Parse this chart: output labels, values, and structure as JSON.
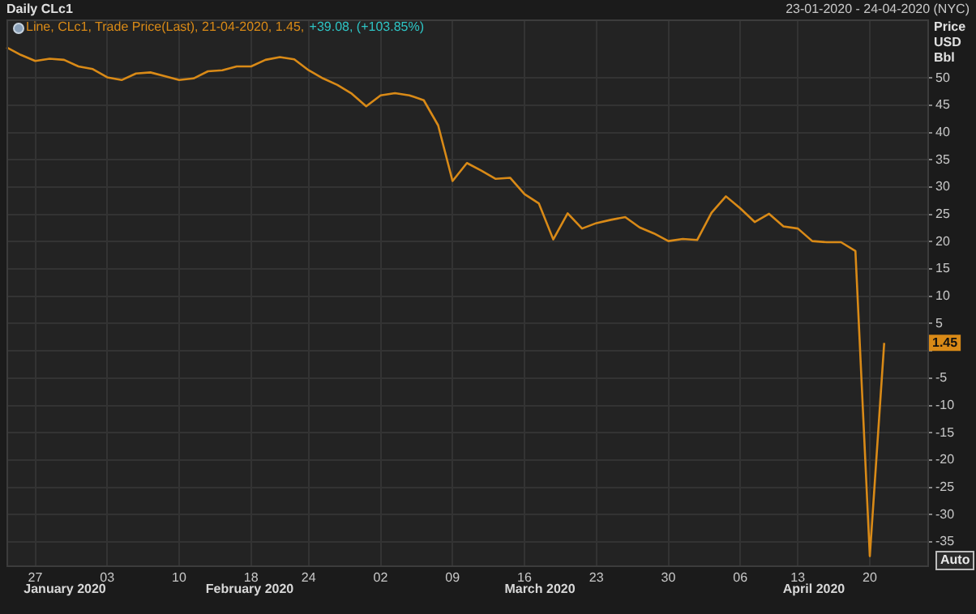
{
  "chart_data": {
    "type": "line",
    "title": "Daily CLc1",
    "subtitle": "23-01-2020 - 24-04-2020 (NYC)",
    "ylabel": "Price\nUSD\nBbl",
    "categories": [
      null,
      null,
      "27",
      null,
      null,
      null,
      null,
      "03",
      null,
      null,
      null,
      null,
      "10",
      null,
      null,
      null,
      null,
      "18",
      null,
      null,
      null,
      "24",
      null,
      null,
      null,
      null,
      "02",
      null,
      null,
      null,
      null,
      "09",
      null,
      null,
      null,
      null,
      "16",
      null,
      null,
      null,
      null,
      "23",
      null,
      null,
      null,
      null,
      "30",
      null,
      null,
      null,
      null,
      "06",
      null,
      null,
      null,
      "13",
      null,
      null,
      null,
      null,
      "20",
      null,
      null,
      null,
      null
    ],
    "series": [
      {
        "name": "Line, CLc1, Trade Price(Last), 21-04-2020, 1.45,",
        "color": "#d98a17",
        "values": [
          55.6,
          54.2,
          53.1,
          53.5,
          53.3,
          52.1,
          51.6,
          50.1,
          49.6,
          50.8,
          51.0,
          50.3,
          49.6,
          49.9,
          51.2,
          51.4,
          52.1,
          52.1,
          53.3,
          53.8,
          53.4,
          51.4,
          49.9,
          48.7,
          47.1,
          44.8,
          46.8,
          47.2,
          46.8,
          45.9,
          41.3,
          31.1,
          34.4,
          33.0,
          31.5,
          31.7,
          28.7,
          27.0,
          20.4,
          25.2,
          22.4,
          23.4,
          24.0,
          24.5,
          22.6,
          21.5,
          20.1,
          20.5,
          20.3,
          25.3,
          28.3,
          26.1,
          23.6,
          25.1,
          22.8,
          22.4,
          20.1,
          19.9,
          19.9,
          18.3,
          -37.6,
          1.45,
          null,
          null,
          null
        ]
      }
    ],
    "ylim": [
      -39.3,
      60.7
    ],
    "yticks": [
      -35,
      -30,
      -25,
      -20,
      -15,
      -10,
      -5,
      {
        "value": 0,
        "label": null
      },
      5,
      10,
      15,
      20,
      25,
      30,
      35,
      40,
      45,
      50
    ],
    "grid": true,
    "legend": "top left",
    "marker": "none",
    "line_style": "solid",
    "annotations": [
      "+39.08, (+103.85%)",
      "Auto",
      {
        "text": "1.45",
        "y": 1.45
      },
      "January 2020",
      "February 2020",
      "March 2020",
      "April 2020"
    ]
  }
}
